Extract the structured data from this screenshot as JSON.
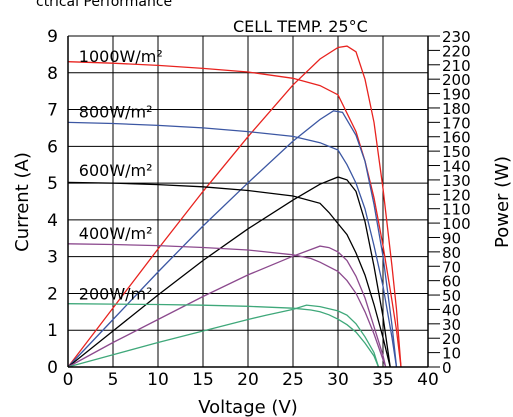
{
  "page_header": "ctrical Performance",
  "chart_data": {
    "type": "line",
    "title": "CELL TEMP. 25°C",
    "xlabel": "Voltage (V)",
    "ylabel": "Current (A)",
    "y2label": "Power (W)",
    "xlim": [
      0,
      40
    ],
    "ylim": [
      0,
      9
    ],
    "y2lim": [
      0,
      230
    ],
    "xticks": [
      "0",
      "5",
      "10",
      "15",
      "20",
      "25",
      "30",
      "35",
      "40"
    ],
    "yticks": [
      "0",
      "1",
      "2",
      "3",
      "4",
      "5",
      "6",
      "7",
      "8",
      "9"
    ],
    "y2ticks": [
      "0",
      "10",
      "20",
      "30",
      "40",
      "50",
      "60",
      "70",
      "80",
      "90",
      "100",
      "110",
      "120",
      "130",
      "140",
      "150",
      "160",
      "170",
      "180",
      "190",
      "200",
      "210",
      "220",
      "230"
    ],
    "grid": true,
    "series": [
      {
        "name": "1000W/m²",
        "color": "#e8231f",
        "label_y": 8.45,
        "iv": [
          [
            0,
            8.3
          ],
          [
            5,
            8.26
          ],
          [
            10,
            8.2
          ],
          [
            15,
            8.12
          ],
          [
            20,
            8.02
          ],
          [
            25,
            7.85
          ],
          [
            28,
            7.65
          ],
          [
            30,
            7.4
          ],
          [
            32,
            6.4
          ],
          [
            33,
            5.6
          ],
          [
            34,
            4.6
          ],
          [
            35,
            3.3
          ],
          [
            36,
            1.8
          ],
          [
            36.5,
            1.0
          ],
          [
            37,
            0
          ]
        ],
        "power": [
          [
            0,
            0
          ],
          [
            5,
            41
          ],
          [
            10,
            82
          ],
          [
            15,
            122
          ],
          [
            20,
            160
          ],
          [
            25,
            196
          ],
          [
            28,
            214
          ],
          [
            30,
            222
          ],
          [
            31,
            223
          ],
          [
            32,
            219
          ],
          [
            33,
            200
          ],
          [
            34,
            170
          ],
          [
            35,
            124
          ],
          [
            36,
            70
          ],
          [
            36.5,
            40
          ],
          [
            37,
            0
          ]
        ]
      },
      {
        "name": "800W/m²",
        "color": "#3c57a3",
        "label_y": 6.95,
        "iv": [
          [
            0,
            6.65
          ],
          [
            5,
            6.62
          ],
          [
            10,
            6.57
          ],
          [
            15,
            6.5
          ],
          [
            20,
            6.4
          ],
          [
            25,
            6.27
          ],
          [
            28,
            6.1
          ],
          [
            30,
            5.9
          ],
          [
            31,
            5.5
          ],
          [
            32,
            5.0
          ],
          [
            33,
            4.3
          ],
          [
            34,
            3.3
          ],
          [
            35,
            2.2
          ],
          [
            36,
            0.8
          ],
          [
            36.5,
            0
          ]
        ],
        "power": [
          [
            0,
            0
          ],
          [
            5,
            33
          ],
          [
            10,
            66
          ],
          [
            15,
            98
          ],
          [
            20,
            128
          ],
          [
            25,
            157
          ],
          [
            28,
            172
          ],
          [
            29.5,
            178
          ],
          [
            30.5,
            177
          ],
          [
            32,
            161
          ],
          [
            33,
            143
          ],
          [
            34,
            113
          ],
          [
            35,
            77
          ],
          [
            36,
            29
          ],
          [
            36.5,
            0
          ]
        ]
      },
      {
        "name": "600W/m²",
        "color": "#000000",
        "label_y": 5.35,
        "iv": [
          [
            0,
            5.02
          ],
          [
            5,
            5.0
          ],
          [
            10,
            4.96
          ],
          [
            15,
            4.9
          ],
          [
            20,
            4.8
          ],
          [
            25,
            4.65
          ],
          [
            28,
            4.45
          ],
          [
            29,
            4.2
          ],
          [
            30,
            3.9
          ],
          [
            31,
            3.6
          ],
          [
            32,
            3.1
          ],
          [
            33,
            2.5
          ],
          [
            34,
            1.7
          ],
          [
            35,
            0.8
          ],
          [
            35.8,
            0
          ]
        ],
        "power": [
          [
            0,
            0
          ],
          [
            5,
            25
          ],
          [
            10,
            50
          ],
          [
            15,
            74
          ],
          [
            20,
            96
          ],
          [
            25,
            116
          ],
          [
            28,
            127
          ],
          [
            30,
            132
          ],
          [
            31,
            130
          ],
          [
            32,
            122
          ],
          [
            33,
            101
          ],
          [
            34,
            70
          ],
          [
            35,
            35
          ],
          [
            35.8,
            0
          ]
        ]
      },
      {
        "name": "400W/m²",
        "color": "#8c4a8e",
        "label_y": 3.65,
        "iv": [
          [
            0,
            3.35
          ],
          [
            5,
            3.33
          ],
          [
            10,
            3.3
          ],
          [
            15,
            3.25
          ],
          [
            20,
            3.18
          ],
          [
            25,
            3.05
          ],
          [
            27,
            2.95
          ],
          [
            28,
            2.85
          ],
          [
            30,
            2.6
          ],
          [
            31,
            2.35
          ],
          [
            32,
            2.0
          ],
          [
            33,
            1.5
          ],
          [
            34,
            0.9
          ],
          [
            35,
            0.2
          ],
          [
            35.3,
            0
          ]
        ],
        "power": [
          [
            0,
            0
          ],
          [
            5,
            17
          ],
          [
            10,
            33
          ],
          [
            15,
            49
          ],
          [
            20,
            64
          ],
          [
            25,
            77
          ],
          [
            28,
            84
          ],
          [
            29,
            83
          ],
          [
            30,
            80
          ],
          [
            31,
            74
          ],
          [
            32,
            63
          ],
          [
            33,
            48
          ],
          [
            34,
            28
          ],
          [
            35,
            8
          ],
          [
            35.3,
            0
          ]
        ]
      },
      {
        "name": "200W/m²",
        "color": "#3fa87a",
        "label_y": 2.0,
        "iv": [
          [
            0,
            1.72
          ],
          [
            5,
            1.71
          ],
          [
            10,
            1.7
          ],
          [
            15,
            1.68
          ],
          [
            20,
            1.65
          ],
          [
            25,
            1.6
          ],
          [
            27,
            1.55
          ],
          [
            28,
            1.5
          ],
          [
            29,
            1.42
          ],
          [
            30,
            1.3
          ],
          [
            31,
            1.15
          ],
          [
            32,
            0.95
          ],
          [
            33,
            0.65
          ],
          [
            34,
            0.3
          ],
          [
            34.5,
            0
          ]
        ],
        "power": [
          [
            0,
            0
          ],
          [
            5,
            8.5
          ],
          [
            10,
            17
          ],
          [
            15,
            25
          ],
          [
            20,
            33
          ],
          [
            22,
            36
          ],
          [
            25,
            40
          ],
          [
            26.5,
            43
          ],
          [
            28,
            42
          ],
          [
            30,
            39
          ],
          [
            31,
            36
          ],
          [
            32,
            30
          ],
          [
            33,
            21
          ],
          [
            34,
            10
          ],
          [
            34.5,
            0
          ]
        ]
      }
    ]
  }
}
